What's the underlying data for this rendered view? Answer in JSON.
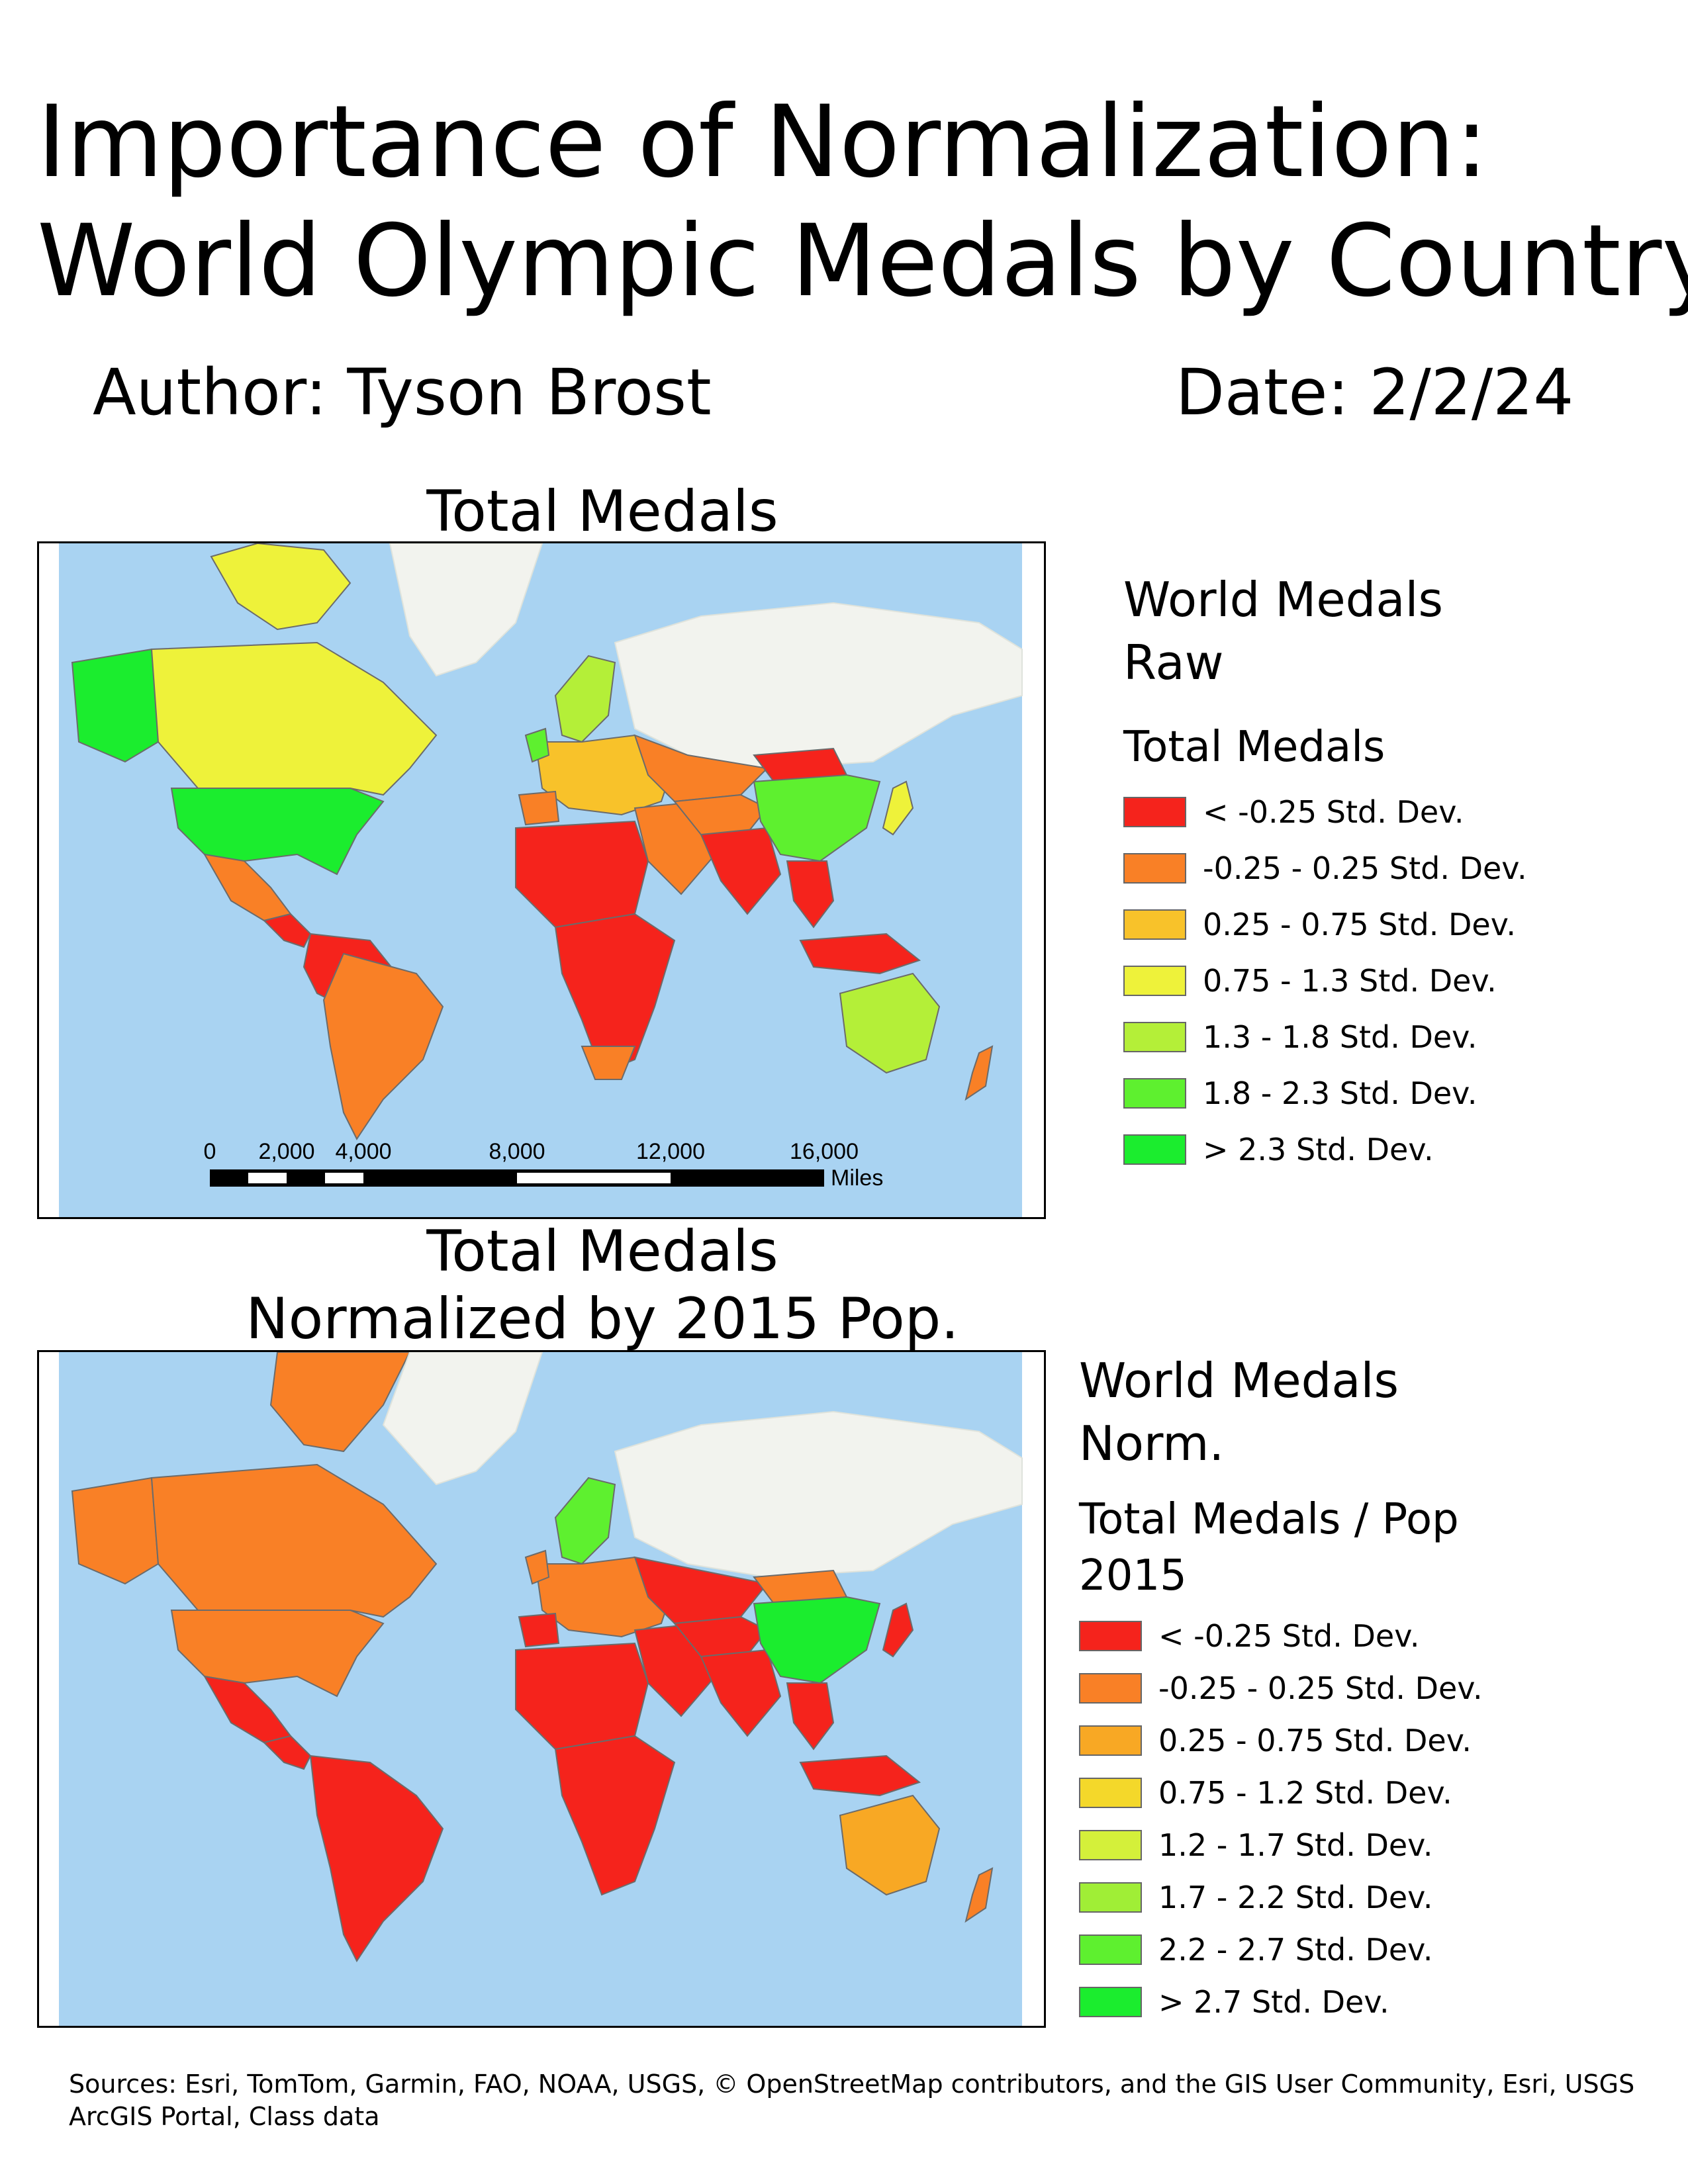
{
  "header": {
    "title_line1": "Importance of Normalization:",
    "title_line2": "World Olympic Medals by Country",
    "author": "Author: Tyson Brost",
    "date": "Date: 2/2/24"
  },
  "map_raw": {
    "title": "Total Medals",
    "legend": {
      "title_line1": "World Medals",
      "title_line2": "Raw",
      "field": "Total Medals",
      "classes": [
        {
          "label": " < -0.25 Std. Dev.",
          "color": "#f5231c"
        },
        {
          "label": "-0.25 - 0.25 Std. Dev.",
          "color": "#f98026"
        },
        {
          "label": "0.25 - 0.75 Std. Dev.",
          "color": "#f8c22a"
        },
        {
          "label": "0.75 - 1.3 Std. Dev.",
          "color": "#eef23a"
        },
        {
          "label": "1.3 - 1.8 Std. Dev.",
          "color": "#b4ef38"
        },
        {
          "label": "1.8 - 2.3 Std. Dev.",
          "color": "#5ef02f"
        },
        {
          "label": " > 2.3 Std. Dev.",
          "color": "#1bed2e"
        }
      ]
    },
    "scalebar": {
      "ticks": [
        "0",
        "2,000",
        "4,000",
        "8,000",
        "12,000",
        "16,000"
      ],
      "unit": "Miles"
    }
  },
  "map_norm": {
    "title_line1": "Total Medals",
    "title_line2": "Normalized by 2015 Pop.",
    "legend": {
      "title_line1": "World Medals",
      "title_line2": "Norm.",
      "field_line1": "Total Medals / Pop",
      "field_line2": "2015",
      "classes": [
        {
          "label": " < -0.25 Std. Dev.",
          "color": "#f5231c"
        },
        {
          "label": "-0.25 - 0.25 Std. Dev.",
          "color": "#f98026"
        },
        {
          "label": "0.25 - 0.75 Std. Dev.",
          "color": "#f8a824"
        },
        {
          "label": "0.75 - 1.2 Std. Dev.",
          "color": "#f4d82a"
        },
        {
          "label": "1.2 - 1.7 Std. Dev.",
          "color": "#d4f03a"
        },
        {
          "label": "1.7 - 2.2 Std. Dev.",
          "color": "#a0ee36"
        },
        {
          "label": "2.2 - 2.7 Std. Dev.",
          "color": "#5ef02f"
        },
        {
          "label": " > 2.7 Std. Dev.",
          "color": "#1bed2e"
        }
      ]
    }
  },
  "footer": {
    "sources_line1": "Sources: Esri, TomTom, Garmin, FAO, NOAA, USGS, © OpenStreetMap contributors, and the GIS User Community, Esri, USGS",
    "sources_line2": "ArcGIS Portal, Class data"
  },
  "map_colors": {
    "ocean": "#a9d3f2",
    "land": "#f2f3ee",
    "border": "#6b6b6b"
  }
}
